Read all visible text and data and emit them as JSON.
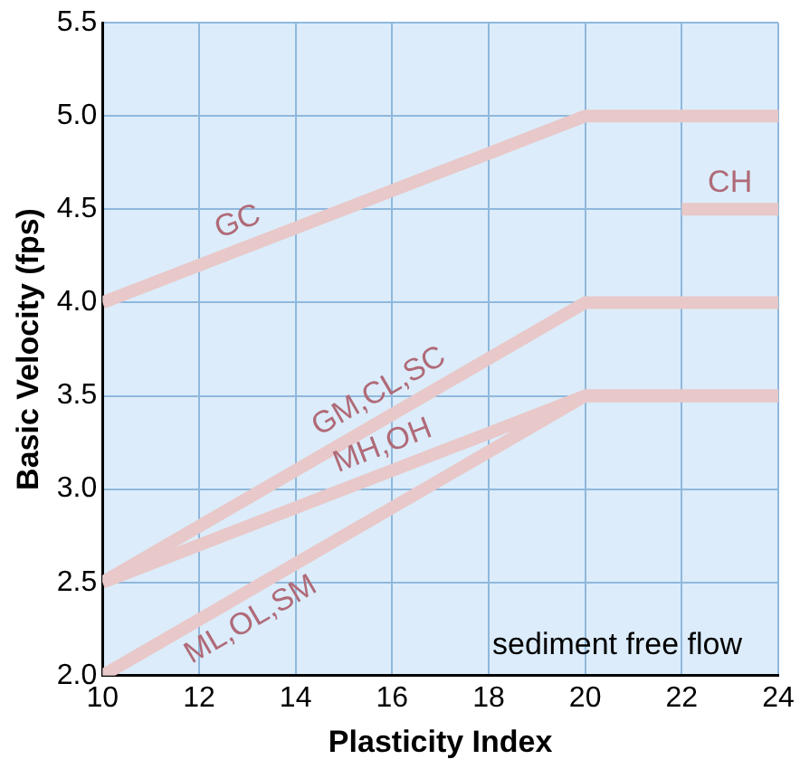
{
  "chart_data": {
    "type": "line",
    "xlabel": "Plasticity Index",
    "ylabel": "Basic Velocity (fps)",
    "xlim": [
      10,
      24
    ],
    "xticks": [
      10,
      12,
      14,
      16,
      18,
      20,
      22,
      24
    ],
    "ylim": [
      2.0,
      5.5
    ],
    "yticks": [
      {
        "value": 2.0,
        "label": "2.0"
      },
      {
        "value": 2.5,
        "label": "2.5"
      },
      {
        "value": 3.0,
        "label": "3.0"
      },
      {
        "value": 3.5,
        "label": "3.5"
      },
      {
        "value": 4.0,
        "label": "4.0"
      },
      {
        "value": 4.5,
        "label": "4.5"
      },
      {
        "value": 5.0,
        "label": "5.0"
      },
      {
        "value": 5.5,
        "label": "5.5"
      }
    ],
    "grid": true,
    "legend": false,
    "marker": "none",
    "line_style": "solid",
    "annotations": [
      "sediment free flow"
    ],
    "series": [
      {
        "name": "GC",
        "color": "#e8c8c8",
        "x": [
          10,
          20,
          24
        ],
        "values": [
          4.0,
          5.0,
          5.0
        ]
      },
      {
        "name": "GM,CL,SC",
        "color": "#e8c8c8",
        "x": [
          10,
          20,
          24
        ],
        "values": [
          2.5,
          4.0,
          4.0
        ]
      },
      {
        "name": "MH,OH",
        "color": "#e8c8c8",
        "x": [
          10,
          20,
          24
        ],
        "values": [
          2.5,
          3.5,
          3.5
        ]
      },
      {
        "name": "ML,OL,SM",
        "color": "#e8c8c8",
        "x": [
          10,
          20,
          24
        ],
        "values": [
          2.0,
          3.5,
          3.5
        ]
      },
      {
        "name": "CH",
        "color": "#e8c8c8",
        "x": [
          22,
          24
        ],
        "values": [
          4.5,
          4.5
        ]
      }
    ]
  }
}
